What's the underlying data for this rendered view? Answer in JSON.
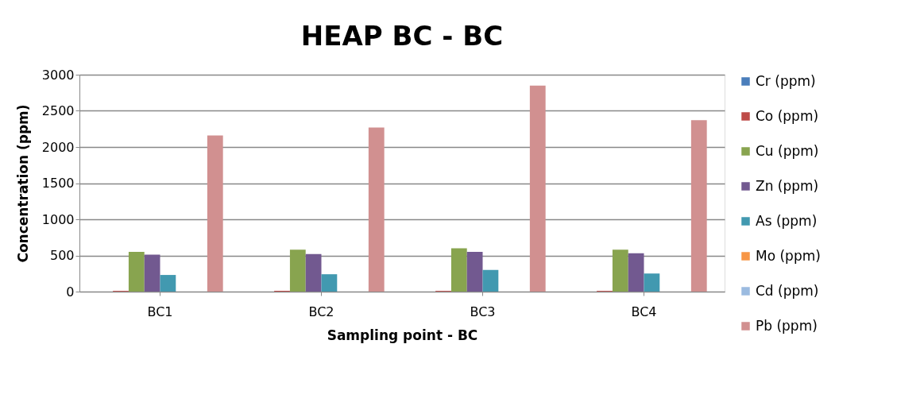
{
  "chart_data": {
    "type": "bar",
    "title": "HEAP BC - BC",
    "xlabel": "Sampling point - BC",
    "ylabel": "Concentration (ppm)",
    "categories": [
      "BC1",
      "BC2",
      "BC3",
      "BC4"
    ],
    "series": [
      {
        "name": "Cr (ppm)",
        "color": "#4a7ebb",
        "values": [
          0,
          0,
          0,
          0
        ]
      },
      {
        "name": "Co (ppm)",
        "color": "#be4b48",
        "values": [
          10,
          10,
          10,
          10
        ]
      },
      {
        "name": "Cu (ppm)",
        "color": "#88a44f",
        "values": [
          550,
          580,
          600,
          580
        ]
      },
      {
        "name": "Zn (ppm)",
        "color": "#725990",
        "values": [
          510,
          520,
          550,
          530
        ]
      },
      {
        "name": "As (ppm)",
        "color": "#4299b0",
        "values": [
          230,
          240,
          300,
          250
        ]
      },
      {
        "name": "Mo (ppm)",
        "color": "#f79646",
        "values": [
          0,
          0,
          0,
          0
        ]
      },
      {
        "name": "Cd (ppm)",
        "color": "#9bbbe0",
        "values": [
          0,
          0,
          0,
          0
        ]
      },
      {
        "name": "Pb (ppm)",
        "color": "#d19090",
        "values": [
          2160,
          2270,
          2850,
          2370
        ]
      }
    ],
    "ylim": [
      0,
      3000
    ],
    "yticks": [
      0,
      500,
      1000,
      1500,
      2000,
      2500,
      3000
    ],
    "grid": "y",
    "legend": "right"
  }
}
